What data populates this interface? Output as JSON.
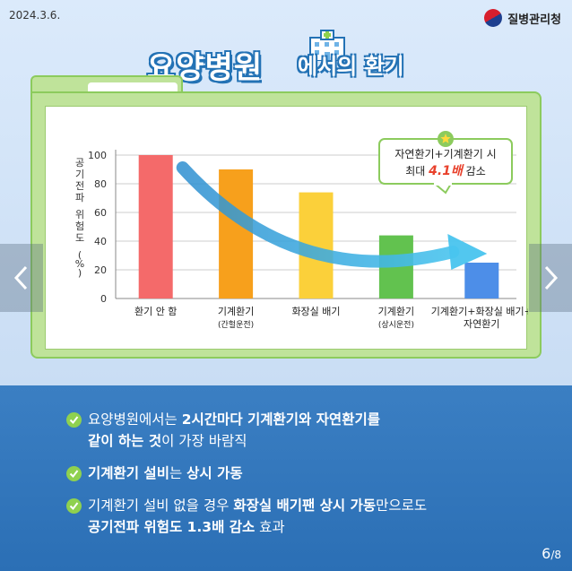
{
  "date": "2024.3.6.",
  "agency": "질병관리청",
  "title": {
    "main": "요양병원",
    "sub": "에서의 환기"
  },
  "chart_data": {
    "type": "bar",
    "ylabel": "공기전파 위험도 (%)",
    "ylim": [
      0,
      100
    ],
    "yticks": [
      0,
      20,
      40,
      60,
      80,
      100
    ],
    "grid": true,
    "categories": [
      {
        "label": "환기 안 함",
        "sublabel": ""
      },
      {
        "label": "기계환기",
        "sublabel": "(간헐운전)"
      },
      {
        "label": "화장실 배기",
        "sublabel": ""
      },
      {
        "label": "기계환기",
        "sublabel": "(상시운전)"
      },
      {
        "label": "기계환기+화장실 배기+",
        "sublabel": "자연환기"
      }
    ],
    "values": [
      100,
      90,
      74,
      44,
      25
    ],
    "colors": [
      "#f46a6a",
      "#f7a01c",
      "#fbd03a",
      "#62c24f",
      "#4d8ee8"
    ],
    "callout": {
      "line1": "자연환기+기계환기 시",
      "line2_prefix": "최대 ",
      "line2_highlight": "4.1배",
      "line2_suffix": " 감소"
    }
  },
  "bullets": [
    [
      {
        "t": "요양병원에서는 ",
        "b": false
      },
      {
        "t": "2시간마다 기계환기와 자연환기를",
        "b": true
      },
      {
        "t": "\n",
        "b": false
      },
      {
        "t": "같이 하는 것",
        "b": true
      },
      {
        "t": "이 가장 바람직",
        "b": false
      }
    ],
    [
      {
        "t": "기계환기 설비",
        "b": true
      },
      {
        "t": "는 ",
        "b": false
      },
      {
        "t": "상시 가동",
        "b": true
      }
    ],
    [
      {
        "t": "기계환기 설비 없을 경우 ",
        "b": false
      },
      {
        "t": "화장실 배기팬 상시 가동",
        "b": true
      },
      {
        "t": "만으로도",
        "b": false
      },
      {
        "t": "\n",
        "b": false
      },
      {
        "t": "공기전파 위험도 1.3배 감소",
        "b": true
      },
      {
        "t": " 효과",
        "b": false
      }
    ]
  ],
  "page": {
    "current": "6",
    "total": "/8"
  },
  "icons": [
    "chevron-left-icon",
    "chevron-right-icon",
    "check-icon",
    "star-icon",
    "hospital-icon",
    "taeguk-icon"
  ]
}
